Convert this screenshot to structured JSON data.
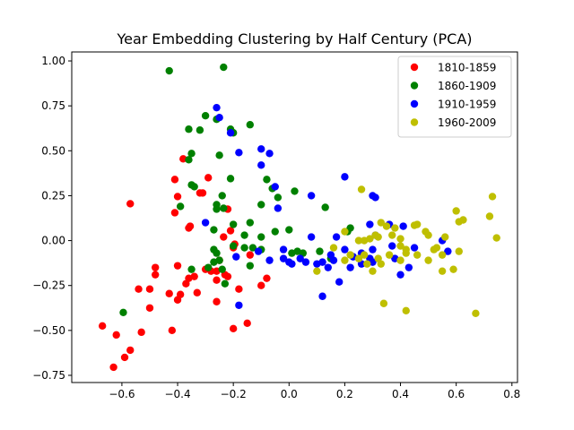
{
  "chart_data": {
    "type": "scatter",
    "title": "Year Embedding Clustering by Half Century (PCA)",
    "xlabel": "",
    "ylabel": "",
    "xlim": [
      -0.78,
      0.82
    ],
    "ylim": [
      -0.79,
      1.05
    ],
    "xticks": [
      -0.6,
      -0.4,
      -0.2,
      0.0,
      0.2,
      0.4,
      0.6,
      0.8
    ],
    "xtick_labels": [
      "−0.6",
      "−0.4",
      "−0.2",
      "0.0",
      "0.2",
      "0.4",
      "0.6",
      "0.8"
    ],
    "yticks": [
      -0.75,
      -0.5,
      -0.25,
      0.0,
      0.25,
      0.5,
      0.75,
      1.0
    ],
    "ytick_labels": [
      "−0.75",
      "−0.50",
      "−0.25",
      "0.00",
      "0.25",
      "0.50",
      "0.75",
      "1.00"
    ],
    "grid": false,
    "legend_position": "top-right",
    "series": [
      {
        "name": "1810-1859",
        "color": "#ff0000",
        "points": [
          [
            -0.57,
            0.205
          ],
          [
            -0.38,
            0.455
          ],
          [
            -0.41,
            0.34
          ],
          [
            -0.4,
            0.245
          ],
          [
            -0.41,
            0.155
          ],
          [
            -0.36,
            0.07
          ],
          [
            -0.355,
            0.08
          ],
          [
            -0.32,
            0.265
          ],
          [
            -0.31,
            0.265
          ],
          [
            -0.29,
            0.35
          ],
          [
            -0.235,
            0.02
          ],
          [
            -0.22,
            0.175
          ],
          [
            -0.21,
            0.055
          ],
          [
            -0.195,
            -0.02
          ],
          [
            -0.2,
            -0.04
          ],
          [
            -0.25,
            -0.11
          ],
          [
            -0.26,
            -0.17
          ],
          [
            -0.28,
            -0.17
          ],
          [
            -0.3,
            -0.16
          ],
          [
            -0.34,
            -0.2
          ],
          [
            -0.37,
            -0.24
          ],
          [
            -0.36,
            -0.21
          ],
          [
            -0.33,
            -0.29
          ],
          [
            -0.39,
            -0.3
          ],
          [
            -0.4,
            -0.33
          ],
          [
            -0.4,
            -0.14
          ],
          [
            -0.43,
            -0.295
          ],
          [
            -0.42,
            -0.5
          ],
          [
            -0.48,
            -0.15
          ],
          [
            -0.48,
            -0.19
          ],
          [
            -0.5,
            -0.27
          ],
          [
            -0.5,
            -0.375
          ],
          [
            -0.54,
            -0.27
          ],
          [
            -0.53,
            -0.51
          ],
          [
            -0.57,
            -0.61
          ],
          [
            -0.59,
            -0.65
          ],
          [
            -0.62,
            -0.525
          ],
          [
            -0.63,
            -0.705
          ],
          [
            -0.67,
            -0.475
          ],
          [
            -0.26,
            -0.34
          ],
          [
            -0.22,
            -0.2
          ],
          [
            -0.23,
            -0.19
          ],
          [
            -0.2,
            -0.49
          ],
          [
            -0.18,
            -0.27
          ],
          [
            -0.15,
            -0.46
          ],
          [
            -0.14,
            -0.08
          ],
          [
            -0.1,
            -0.25
          ],
          [
            -0.08,
            -0.21
          ],
          [
            -0.26,
            -0.22
          ]
        ]
      },
      {
        "name": "1860-1909",
        "color": "#008000",
        "points": [
          [
            -0.43,
            0.945
          ],
          [
            -0.235,
            0.965
          ],
          [
            -0.3,
            0.695
          ],
          [
            -0.26,
            0.675
          ],
          [
            -0.14,
            0.645
          ],
          [
            -0.36,
            0.62
          ],
          [
            -0.32,
            0.615
          ],
          [
            -0.21,
            0.62
          ],
          [
            -0.2,
            0.6
          ],
          [
            -0.25,
            0.475
          ],
          [
            -0.35,
            0.485
          ],
          [
            -0.36,
            0.45
          ],
          [
            -0.35,
            0.31
          ],
          [
            -0.34,
            0.3
          ],
          [
            -0.21,
            0.345
          ],
          [
            -0.08,
            0.34
          ],
          [
            -0.06,
            0.29
          ],
          [
            -0.04,
            0.24
          ],
          [
            0.02,
            0.275
          ],
          [
            -0.26,
            0.2
          ],
          [
            -0.26,
            0.175
          ],
          [
            -0.24,
            0.25
          ],
          [
            -0.235,
            0.18
          ],
          [
            -0.39,
            0.19
          ],
          [
            -0.1,
            0.2
          ],
          [
            -0.27,
            0.06
          ],
          [
            -0.2,
            0.09
          ],
          [
            -0.14,
            0.1
          ],
          [
            -0.05,
            0.05
          ],
          [
            0.0,
            0.06
          ],
          [
            0.13,
            0.185
          ],
          [
            -0.16,
            0.03
          ],
          [
            -0.1,
            0.02
          ],
          [
            -0.2,
            -0.03
          ],
          [
            -0.16,
            -0.04
          ],
          [
            -0.13,
            -0.04
          ],
          [
            -0.27,
            -0.05
          ],
          [
            -0.26,
            -0.07
          ],
          [
            -0.25,
            -0.11
          ],
          [
            -0.27,
            -0.12
          ],
          [
            -0.29,
            -0.15
          ],
          [
            -0.35,
            -0.16
          ],
          [
            -0.24,
            -0.16
          ],
          [
            -0.14,
            -0.14
          ],
          [
            -0.1,
            -0.05
          ],
          [
            0.01,
            -0.07
          ],
          [
            0.03,
            -0.06
          ],
          [
            0.05,
            -0.07
          ],
          [
            0.15,
            -0.1
          ],
          [
            0.21,
            0.05
          ],
          [
            0.22,
            0.07
          ],
          [
            0.11,
            -0.06
          ],
          [
            -0.23,
            -0.24
          ],
          [
            -0.595,
            -0.4
          ]
        ]
      },
      {
        "name": "1910-1959",
        "color": "#0000ff",
        "points": [
          [
            -0.26,
            0.74
          ],
          [
            -0.25,
            0.685
          ],
          [
            -0.21,
            0.6
          ],
          [
            -0.18,
            0.49
          ],
          [
            -0.1,
            0.51
          ],
          [
            -0.07,
            0.485
          ],
          [
            -0.1,
            0.42
          ],
          [
            -0.05,
            0.3
          ],
          [
            -0.04,
            0.18
          ],
          [
            0.08,
            0.25
          ],
          [
            0.2,
            0.355
          ],
          [
            0.3,
            0.25
          ],
          [
            0.31,
            0.24
          ],
          [
            -0.3,
            0.1
          ],
          [
            -0.19,
            -0.09
          ],
          [
            -0.18,
            -0.36
          ],
          [
            -0.07,
            -0.11
          ],
          [
            -0.02,
            -0.05
          ],
          [
            -0.02,
            -0.1
          ],
          [
            0.0,
            -0.12
          ],
          [
            0.01,
            -0.13
          ],
          [
            0.04,
            -0.1
          ],
          [
            0.06,
            -0.12
          ],
          [
            0.08,
            0.02
          ],
          [
            0.1,
            -0.13
          ],
          [
            0.12,
            -0.12
          ],
          [
            0.12,
            -0.31
          ],
          [
            0.14,
            -0.15
          ],
          [
            0.15,
            -0.08
          ],
          [
            0.16,
            -0.11
          ],
          [
            0.18,
            -0.23
          ],
          [
            0.2,
            -0.05
          ],
          [
            0.22,
            -0.15
          ],
          [
            0.23,
            -0.09
          ],
          [
            0.26,
            -0.07
          ],
          [
            0.29,
            -0.1
          ],
          [
            0.3,
            -0.05
          ],
          [
            0.3,
            -0.12
          ],
          [
            0.31,
            0.03
          ],
          [
            0.29,
            0.09
          ],
          [
            0.36,
            0.09
          ],
          [
            0.38,
            -0.1
          ],
          [
            0.4,
            -0.19
          ],
          [
            0.41,
            0.08
          ],
          [
            0.43,
            -0.15
          ],
          [
            0.45,
            -0.04
          ],
          [
            0.55,
            0.0
          ],
          [
            0.57,
            -0.06
          ],
          [
            0.37,
            -0.03
          ],
          [
            0.17,
            0.02
          ],
          [
            -0.11,
            -0.06
          ],
          [
            0.26,
            -0.13
          ]
        ]
      },
      {
        "name": "1960-2009",
        "color": "#bfbf00",
        "points": [
          [
            0.26,
            0.285
          ],
          [
            0.2,
            0.05
          ],
          [
            0.25,
            0.0
          ],
          [
            0.27,
            0.0
          ],
          [
            0.29,
            0.01
          ],
          [
            0.31,
            0.03
          ],
          [
            0.32,
            0.02
          ],
          [
            0.33,
            0.1
          ],
          [
            0.35,
            0.08
          ],
          [
            0.37,
            0.03
          ],
          [
            0.4,
            0.01
          ],
          [
            0.4,
            -0.03
          ],
          [
            0.42,
            -0.05
          ],
          [
            0.45,
            0.085
          ],
          [
            0.46,
            0.09
          ],
          [
            0.49,
            0.05
          ],
          [
            0.5,
            0.03
          ],
          [
            0.53,
            -0.04
          ],
          [
            0.56,
            0.02
          ],
          [
            0.6,
            0.165
          ],
          [
            0.61,
            0.105
          ],
          [
            0.625,
            0.115
          ],
          [
            0.73,
            0.245
          ],
          [
            0.72,
            0.135
          ],
          [
            0.745,
            0.015
          ],
          [
            0.61,
            -0.06
          ],
          [
            0.59,
            -0.16
          ],
          [
            0.55,
            -0.17
          ],
          [
            0.55,
            -0.08
          ],
          [
            0.5,
            -0.11
          ],
          [
            0.46,
            -0.08
          ],
          [
            0.42,
            -0.07
          ],
          [
            0.4,
            -0.11
          ],
          [
            0.36,
            -0.08
          ],
          [
            0.33,
            -0.13
          ],
          [
            0.32,
            -0.1
          ],
          [
            0.3,
            -0.17
          ],
          [
            0.28,
            -0.13
          ],
          [
            0.25,
            -0.1
          ],
          [
            0.22,
            -0.08
          ],
          [
            0.2,
            -0.11
          ],
          [
            0.1,
            -0.17
          ],
          [
            0.34,
            -0.35
          ],
          [
            0.42,
            -0.39
          ],
          [
            0.67,
            -0.405
          ],
          [
            0.27,
            -0.08
          ],
          [
            0.38,
            0.07
          ],
          [
            0.52,
            -0.05
          ],
          [
            0.16,
            -0.04
          ]
        ]
      }
    ]
  }
}
